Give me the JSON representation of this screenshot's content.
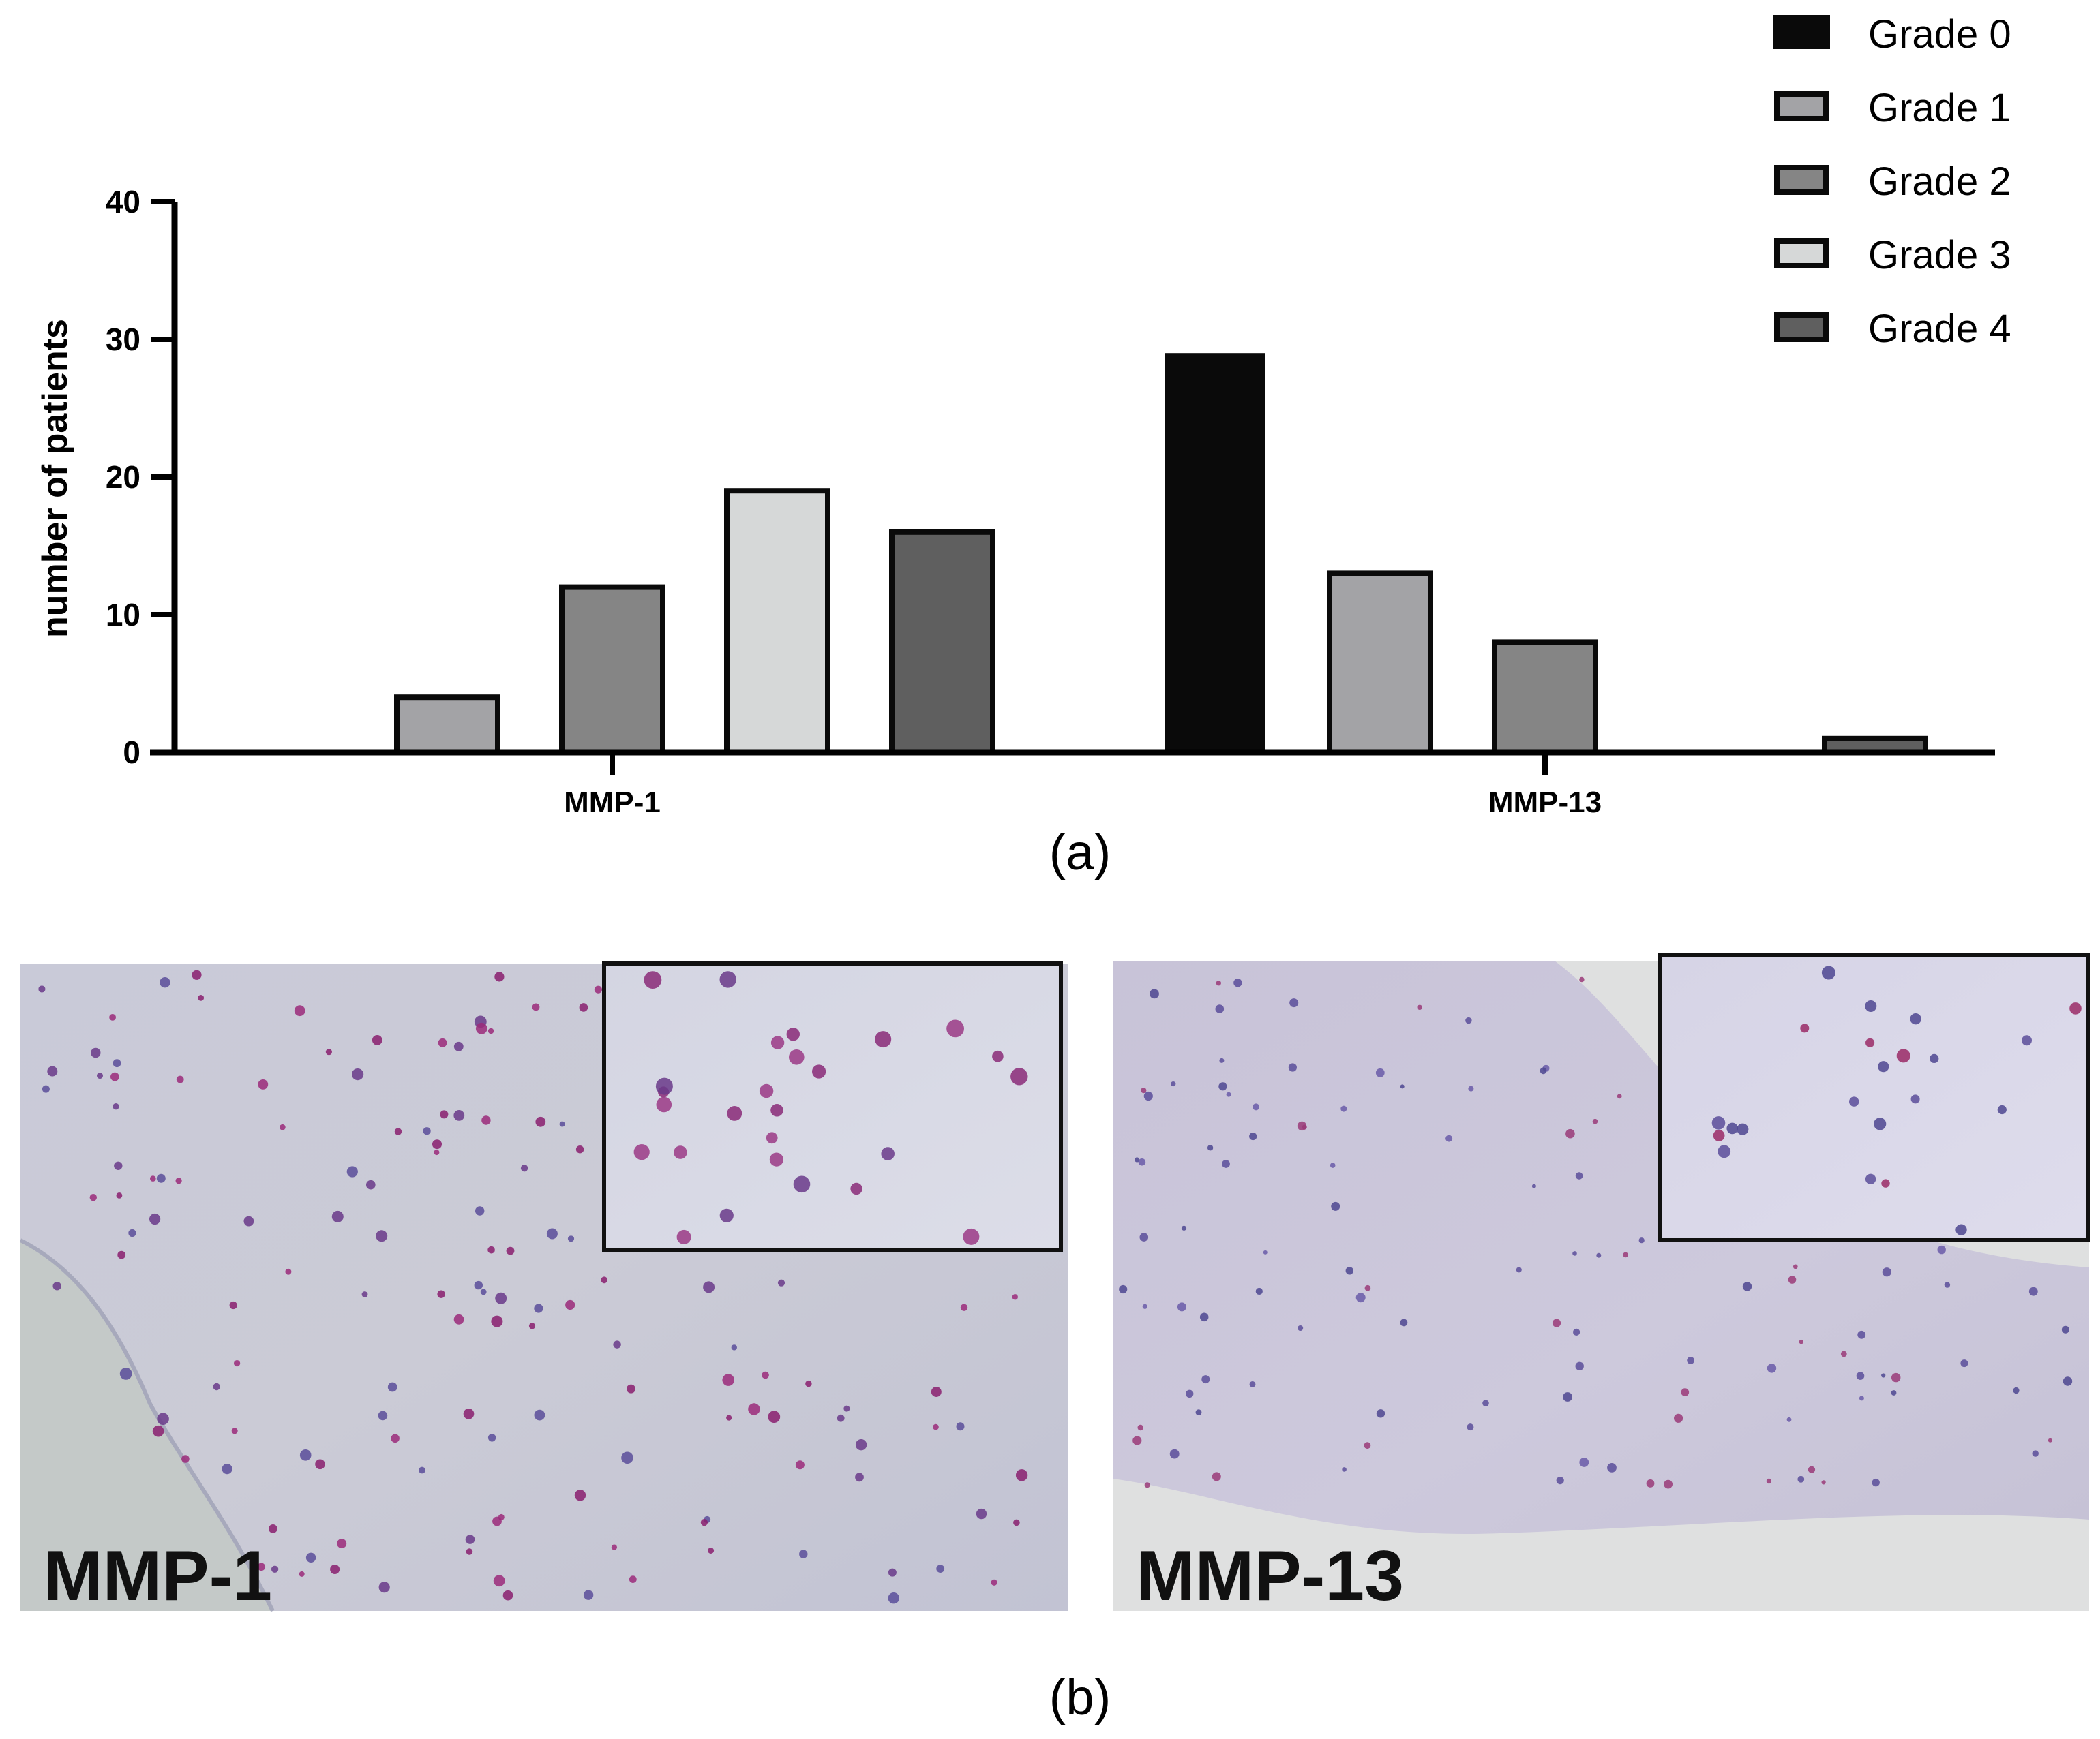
{
  "chart_data": {
    "type": "bar",
    "categories": [
      "MMP-1",
      "MMP-13"
    ],
    "series": [
      {
        "name": "Grade 0",
        "values": [
          0,
          29
        ],
        "color": "#0a0a0a"
      },
      {
        "name": "Grade 1",
        "values": [
          4,
          13
        ],
        "color": "#a3a3a6"
      },
      {
        "name": "Grade 2",
        "values": [
          12,
          8
        ],
        "color": "#858585"
      },
      {
        "name": "Grade 3",
        "values": [
          19,
          0
        ],
        "color": "#d6d8d8"
      },
      {
        "name": "Grade 4",
        "values": [
          16,
          1
        ],
        "color": "#5f5f5f"
      }
    ],
    "ylabel": "number of patients",
    "xlabel": "",
    "ylim": [
      0,
      40
    ],
    "yticks": [
      "0",
      "10",
      "20",
      "30",
      "40"
    ],
    "legend_position": "top-right",
    "grid": false
  },
  "panel_labels": {
    "a": "(a)",
    "b": "(b)"
  },
  "micrographs": [
    {
      "label": "MMP-1"
    },
    {
      "label": "MMP-13"
    }
  ]
}
